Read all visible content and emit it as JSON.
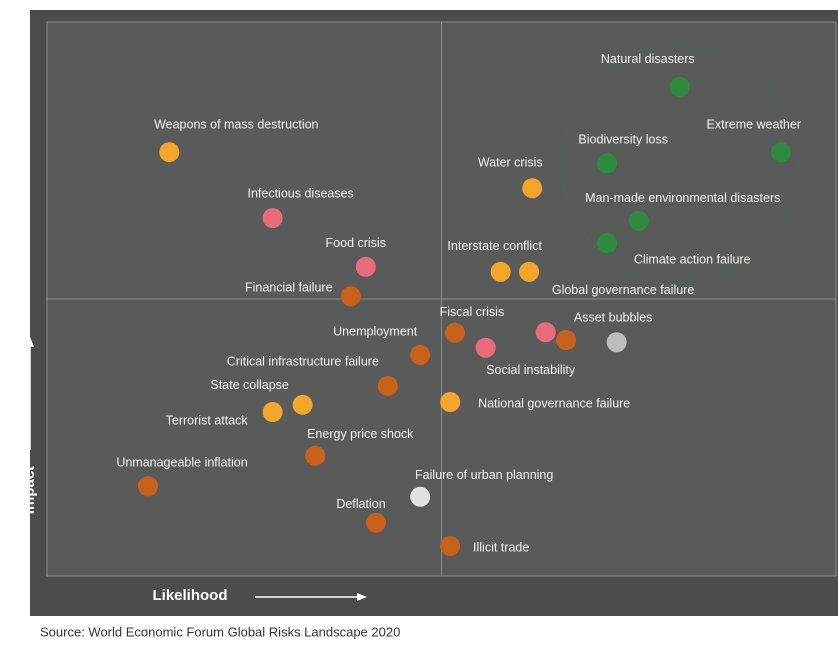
{
  "chart_data": {
    "type": "scatter",
    "xlabel": "Likelihood",
    "ylabel": "Impact",
    "source": "Source: World Economic Forum Global Risks Landscape 2020",
    "xlim": [
      0,
      100
    ],
    "ylim": [
      0,
      100
    ],
    "labels": [
      "Natural disasters",
      "Extreme weather",
      "Biodiversity loss",
      "Man-made environmental disasters",
      "Climate action failure",
      "Water crisis",
      "Interstate conflict",
      "Global governance failure",
      "Weapons of mass destruction",
      "Infectious diseases",
      "Food crisis",
      "Financial failure",
      "Fiscal crisis",
      "Asset bubbles",
      "Social instability",
      "Unemployment",
      "Critical infrastructure failure",
      "State collapse",
      "Terrorist attack",
      "National governance failure",
      "Energy price shock",
      "Unmanageable inflation",
      "Failure of urban planning",
      "Deflation",
      "Illicit trade",
      null,
      null
    ],
    "x": [
      80.2,
      93.0,
      71.0,
      75.0,
      71.0,
      61.5,
      57.5,
      61.1,
      15.5,
      28.6,
      40.4,
      38.5,
      51.7,
      65.8,
      55.6,
      47.3,
      43.2,
      32.4,
      28.6,
      51.1,
      34.0,
      12.8,
      47.3,
      41.7,
      51.1,
      63.2,
      72.2
    ],
    "y": [
      88.3,
      76.5,
      74.5,
      64.1,
      60.1,
      70.0,
      54.9,
      54.9,
      76.5,
      64.6,
      55.8,
      50.5,
      43.9,
      42.6,
      41.2,
      39.9,
      34.3,
      30.9,
      29.6,
      31.4,
      21.7,
      16.2,
      14.3,
      9.6,
      5.4,
      44.0,
      42.2
    ],
    "colors": [
      "#2e8b3e",
      "#2e8b3e",
      "#2e8b3e",
      "#2e8b3e",
      "#2e8b3e",
      "#f5a52a",
      "#f5a52a",
      "#f5a52a",
      "#f5a52a",
      "#ea6b7b",
      "#ea6b7b",
      "#c9611b",
      "#c9611b",
      "#c9611b",
      "#ea6b7b",
      "#c9611b",
      "#c9611b",
      "#f5a52a",
      "#f5a52a",
      "#f5a52a",
      "#c9611b",
      "#c9611b",
      "#e2e2e2",
      "#c9611b",
      "#c9611b",
      "#ea6b7b",
      "#bdbdbd"
    ]
  }
}
